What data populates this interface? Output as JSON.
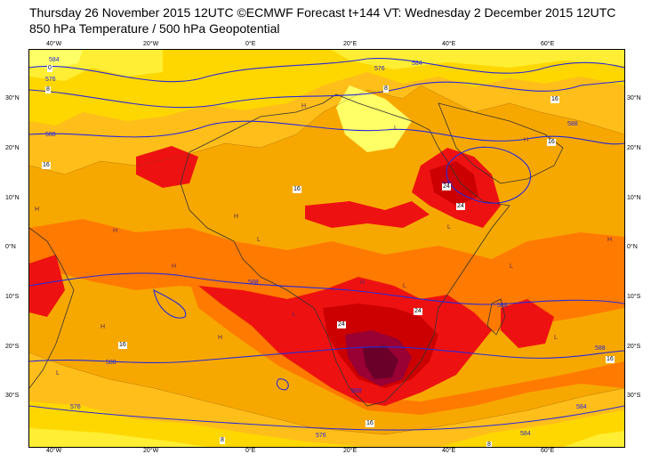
{
  "title": {
    "line1": "Thursday 26 November 2015 12UTC ©ECMWF Forecast t+144 VT: Wednesday 2 December 2015 12UTC",
    "line2": "850 hPa Temperature / 500 hPa Geopotential"
  },
  "axes": {
    "longitude_labels": [
      "40°W",
      "20°W",
      "0°E",
      "20°E",
      "40°E",
      "60°E"
    ],
    "latitude_labels": [
      "30°N",
      "20°N",
      "10°N",
      "0°N",
      "10°S",
      "20°S",
      "30°S"
    ]
  },
  "contour_labels": {
    "geopotential": [
      "584",
      "576",
      "588",
      "588",
      "584",
      "576",
      "588",
      "588",
      "588",
      "588",
      "584",
      "576",
      "588",
      "576",
      "584",
      "588"
    ],
    "temperature": [
      "16",
      "16",
      "16",
      "24",
      "24",
      "24",
      "24",
      "16",
      "16",
      "16",
      "8",
      "0",
      "8",
      "8",
      "8",
      "16"
    ]
  },
  "pressure_markers": [
    "H",
    "L"
  ],
  "colors": {
    "temp_0_4": "#ffff66",
    "temp_4_8": "#ffee33",
    "temp_8_12": "#ffd700",
    "temp_12_16": "#ffbe1a",
    "temp_16_20": "#f7a800",
    "temp_20_24": "#ff7a00",
    "temp_24_28": "#ee1111",
    "temp_28_32": "#cc0000",
    "temp_32_36": "#990033",
    "temp_36_40": "#6a0029",
    "geopotential_line": "#2a2ad6",
    "coastline": "#333333"
  }
}
